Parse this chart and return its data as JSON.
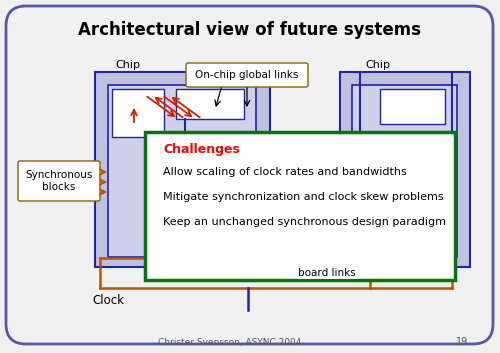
{
  "title": "Architectural view of future systems",
  "bg_color": "#f0f0f0",
  "border_color": "#5555aa",
  "chip_label": "Chip",
  "clock_label": "Clock",
  "sync_label": "Synchronous\nblocks",
  "onchip_label": "On-chip global links",
  "board_label": "board links",
  "challenges_title": "Challenges",
  "challenges_items": [
    "Allow scaling of clock rates and bandwidths",
    "Mitigate synchronization and clock skew problems",
    "Keep an unchanged synchronous design paradigm"
  ],
  "footer": "Christer Svensson, ASYNC 2004",
  "page_num": "19",
  "chip_fill": "#c0c0e0",
  "inner_fill": "#d0d0ec",
  "white_fill": "#ffffff",
  "green_border": "#007700",
  "blue_line": "#2222aa",
  "red_line": "#cc2200",
  "orange_line": "#bb5500"
}
